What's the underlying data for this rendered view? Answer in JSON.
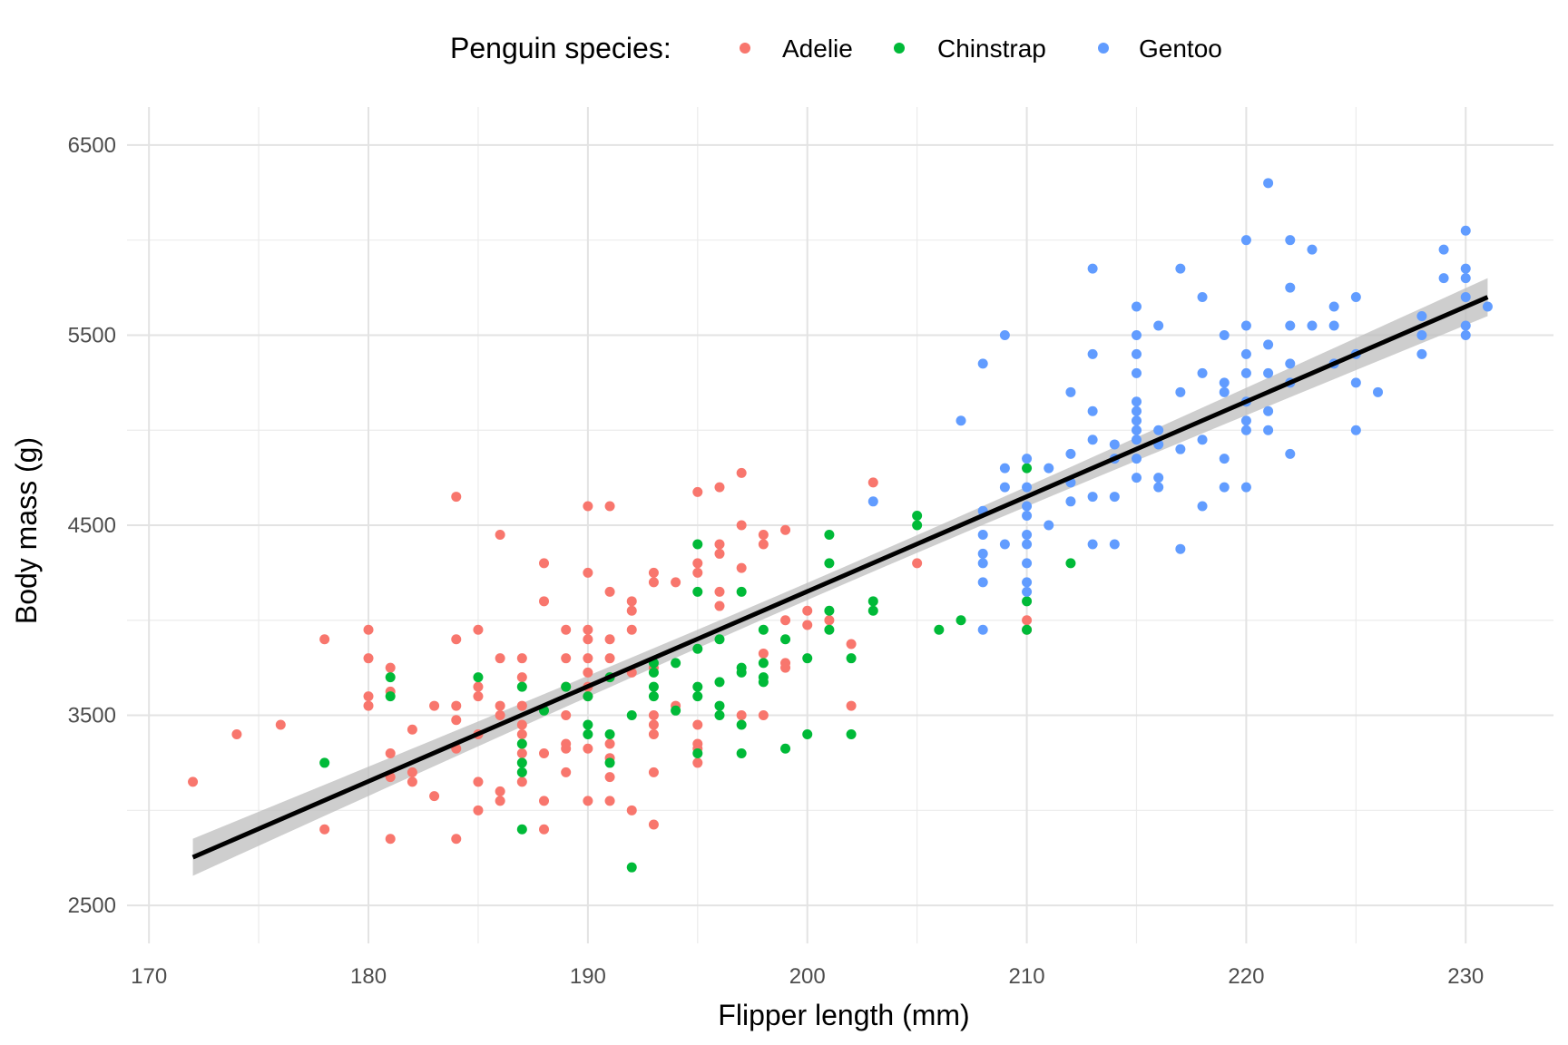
{
  "chart_data": {
    "type": "scatter",
    "xlabel": "Flipper length (mm)",
    "ylabel": "Body mass (g)",
    "xlim": [
      169,
      234
    ],
    "ylim": [
      2300,
      6700
    ],
    "x_ticks": [
      170,
      180,
      190,
      200,
      210,
      220,
      230
    ],
    "y_ticks": [
      2500,
      3500,
      4500,
      5500,
      6500
    ],
    "grid": true,
    "legend": {
      "title": "Penguin species:",
      "position": "top"
    },
    "colors": {
      "Adelie": "#F8766D",
      "Chinstrap": "#00BA38",
      "Gentoo": "#619CFF",
      "fit_line": "#000000",
      "confidence_band": "#BEBEBE"
    },
    "series": [
      {
        "name": "Adelie",
        "points": [
          [
            172,
            3150
          ],
          [
            174,
            3400
          ],
          [
            176,
            3450
          ],
          [
            178,
            3900
          ],
          [
            178,
            2900
          ],
          [
            180,
            3950
          ],
          [
            180,
            3800
          ],
          [
            180,
            3600
          ],
          [
            180,
            3550
          ],
          [
            181,
            3750
          ],
          [
            181,
            3625
          ],
          [
            181,
            3300
          ],
          [
            181,
            3175
          ],
          [
            181,
            2850
          ],
          [
            182,
            3425
          ],
          [
            182,
            3200
          ],
          [
            182,
            3150
          ],
          [
            183,
            3550
          ],
          [
            183,
            3075
          ],
          [
            184,
            4650
          ],
          [
            184,
            3900
          ],
          [
            184,
            3550
          ],
          [
            184,
            3475
          ],
          [
            184,
            3325
          ],
          [
            184,
            2850
          ],
          [
            185,
            3950
          ],
          [
            185,
            3650
          ],
          [
            185,
            3600
          ],
          [
            185,
            3400
          ],
          [
            185,
            3150
          ],
          [
            185,
            3000
          ],
          [
            186,
            4450
          ],
          [
            186,
            3800
          ],
          [
            186,
            3550
          ],
          [
            186,
            3500
          ],
          [
            186,
            3100
          ],
          [
            186,
            3050
          ],
          [
            187,
            3800
          ],
          [
            187,
            3700
          ],
          [
            187,
            3550
          ],
          [
            187,
            3450
          ],
          [
            187,
            3400
          ],
          [
            187,
            3300
          ],
          [
            187,
            3150
          ],
          [
            188,
            4300
          ],
          [
            188,
            4100
          ],
          [
            188,
            3300
          ],
          [
            188,
            3050
          ],
          [
            188,
            2900
          ],
          [
            189,
            3950
          ],
          [
            189,
            3800
          ],
          [
            189,
            3650
          ],
          [
            189,
            3500
          ],
          [
            189,
            3350
          ],
          [
            189,
            3325
          ],
          [
            189,
            3200
          ],
          [
            190,
            4600
          ],
          [
            190,
            4250
          ],
          [
            190,
            3950
          ],
          [
            190,
            3900
          ],
          [
            190,
            3800
          ],
          [
            190,
            3725
          ],
          [
            190,
            3650
          ],
          [
            190,
            3600
          ],
          [
            190,
            3325
          ],
          [
            190,
            3050
          ],
          [
            191,
            4600
          ],
          [
            191,
            4150
          ],
          [
            191,
            3900
          ],
          [
            191,
            3800
          ],
          [
            191,
            3700
          ],
          [
            191,
            3350
          ],
          [
            191,
            3275
          ],
          [
            191,
            3175
          ],
          [
            191,
            3050
          ],
          [
            192,
            4100
          ],
          [
            192,
            4050
          ],
          [
            192,
            3950
          ],
          [
            192,
            3725
          ],
          [
            192,
            3000
          ],
          [
            193,
            4250
          ],
          [
            193,
            4200
          ],
          [
            193,
            3750
          ],
          [
            193,
            3500
          ],
          [
            193,
            3450
          ],
          [
            193,
            3400
          ],
          [
            193,
            3200
          ],
          [
            193,
            2925
          ],
          [
            194,
            4200
          ],
          [
            194,
            3550
          ],
          [
            195,
            4675
          ],
          [
            195,
            4300
          ],
          [
            195,
            4250
          ],
          [
            195,
            3450
          ],
          [
            195,
            3350
          ],
          [
            195,
            3325
          ],
          [
            195,
            3250
          ],
          [
            196,
            4700
          ],
          [
            196,
            4400
          ],
          [
            196,
            4350
          ],
          [
            196,
            4150
          ],
          [
            196,
            4075
          ],
          [
            197,
            4775
          ],
          [
            197,
            4500
          ],
          [
            197,
            4275
          ],
          [
            197,
            3500
          ],
          [
            198,
            4450
          ],
          [
            198,
            4400
          ],
          [
            198,
            3825
          ],
          [
            198,
            3500
          ],
          [
            199,
            4475
          ],
          [
            199,
            4000
          ],
          [
            199,
            3775
          ],
          [
            199,
            3750
          ],
          [
            200,
            4050
          ],
          [
            200,
            3975
          ],
          [
            201,
            4000
          ],
          [
            202,
            3875
          ],
          [
            202,
            3550
          ],
          [
            203,
            4725
          ],
          [
            205,
            4300
          ],
          [
            210,
            4000
          ],
          [
            210,
            3950
          ]
        ]
      },
      {
        "name": "Chinstrap",
        "points": [
          [
            178,
            3250
          ],
          [
            181,
            3700
          ],
          [
            181,
            3600
          ],
          [
            185,
            3700
          ],
          [
            187,
            3650
          ],
          [
            187,
            3350
          ],
          [
            187,
            3250
          ],
          [
            187,
            3200
          ],
          [
            187,
            2900
          ],
          [
            188,
            3525
          ],
          [
            189,
            3650
          ],
          [
            190,
            3600
          ],
          [
            190,
            3450
          ],
          [
            190,
            3400
          ],
          [
            191,
            3700
          ],
          [
            191,
            3400
          ],
          [
            191,
            3250
          ],
          [
            192,
            3500
          ],
          [
            192,
            2700
          ],
          [
            193,
            3775
          ],
          [
            193,
            3725
          ],
          [
            193,
            3650
          ],
          [
            193,
            3600
          ],
          [
            194,
            3775
          ],
          [
            194,
            3525
          ],
          [
            195,
            4400
          ],
          [
            195,
            4150
          ],
          [
            195,
            3850
          ],
          [
            195,
            3650
          ],
          [
            195,
            3600
          ],
          [
            195,
            3300
          ],
          [
            196,
            3900
          ],
          [
            196,
            3675
          ],
          [
            196,
            3550
          ],
          [
            196,
            3500
          ],
          [
            197,
            4150
          ],
          [
            197,
            3750
          ],
          [
            197,
            3725
          ],
          [
            197,
            3450
          ],
          [
            197,
            3300
          ],
          [
            198,
            3950
          ],
          [
            198,
            3775
          ],
          [
            198,
            3700
          ],
          [
            198,
            3675
          ],
          [
            199,
            3900
          ],
          [
            199,
            3325
          ],
          [
            200,
            3800
          ],
          [
            200,
            3400
          ],
          [
            201,
            4450
          ],
          [
            201,
            4300
          ],
          [
            201,
            4050
          ],
          [
            201,
            3950
          ],
          [
            202,
            3800
          ],
          [
            202,
            3400
          ],
          [
            203,
            4100
          ],
          [
            203,
            4050
          ],
          [
            205,
            4550
          ],
          [
            205,
            4500
          ],
          [
            206,
            3950
          ],
          [
            207,
            4000
          ],
          [
            210,
            4800
          ],
          [
            210,
            4100
          ],
          [
            210,
            3950
          ],
          [
            212,
            4300
          ]
        ]
      },
      {
        "name": "Gentoo",
        "points": [
          [
            203,
            4625
          ],
          [
            207,
            5050
          ],
          [
            208,
            5350
          ],
          [
            208,
            4575
          ],
          [
            208,
            4450
          ],
          [
            208,
            4350
          ],
          [
            208,
            4300
          ],
          [
            208,
            4200
          ],
          [
            208,
            3950
          ],
          [
            209,
            5500
          ],
          [
            209,
            4800
          ],
          [
            209,
            4700
          ],
          [
            209,
            4400
          ],
          [
            210,
            4850
          ],
          [
            210,
            4700
          ],
          [
            210,
            4600
          ],
          [
            210,
            4550
          ],
          [
            210,
            4450
          ],
          [
            210,
            4400
          ],
          [
            210,
            4300
          ],
          [
            210,
            4200
          ],
          [
            210,
            4150
          ],
          [
            211,
            4800
          ],
          [
            211,
            4500
          ],
          [
            212,
            5200
          ],
          [
            212,
            4875
          ],
          [
            212,
            4725
          ],
          [
            212,
            4625
          ],
          [
            213,
            5850
          ],
          [
            213,
            5400
          ],
          [
            213,
            5100
          ],
          [
            213,
            4950
          ],
          [
            213,
            4650
          ],
          [
            213,
            4400
          ],
          [
            214,
            4925
          ],
          [
            214,
            4850
          ],
          [
            214,
            4650
          ],
          [
            214,
            4400
          ],
          [
            215,
            5650
          ],
          [
            215,
            5500
          ],
          [
            215,
            5400
          ],
          [
            215,
            5300
          ],
          [
            215,
            5150
          ],
          [
            215,
            5100
          ],
          [
            215,
            5050
          ],
          [
            215,
            5000
          ],
          [
            215,
            4950
          ],
          [
            215,
            4850
          ],
          [
            215,
            4750
          ],
          [
            216,
            5550
          ],
          [
            216,
            5000
          ],
          [
            216,
            4925
          ],
          [
            216,
            4750
          ],
          [
            216,
            4700
          ],
          [
            217,
            5850
          ],
          [
            217,
            5200
          ],
          [
            217,
            4900
          ],
          [
            217,
            4375
          ],
          [
            218,
            5700
          ],
          [
            218,
            5300
          ],
          [
            218,
            4950
          ],
          [
            218,
            4600
          ],
          [
            219,
            5500
          ],
          [
            219,
            5250
          ],
          [
            219,
            5200
          ],
          [
            219,
            4850
          ],
          [
            219,
            4700
          ],
          [
            220,
            6000
          ],
          [
            220,
            5550
          ],
          [
            220,
            5400
          ],
          [
            220,
            5300
          ],
          [
            220,
            5150
          ],
          [
            220,
            5050
          ],
          [
            220,
            5000
          ],
          [
            220,
            4700
          ],
          [
            221,
            6300
          ],
          [
            221,
            5450
          ],
          [
            221,
            5300
          ],
          [
            221,
            5100
          ],
          [
            221,
            5000
          ],
          [
            222,
            6000
          ],
          [
            222,
            5750
          ],
          [
            222,
            5550
          ],
          [
            222,
            5350
          ],
          [
            222,
            5250
          ],
          [
            222,
            4875
          ],
          [
            223,
            5950
          ],
          [
            223,
            5550
          ],
          [
            224,
            5650
          ],
          [
            224,
            5550
          ],
          [
            224,
            5350
          ],
          [
            225,
            5700
          ],
          [
            225,
            5400
          ],
          [
            225,
            5250
          ],
          [
            225,
            5000
          ],
          [
            226,
            5200
          ],
          [
            228,
            5600
          ],
          [
            228,
            5500
          ],
          [
            228,
            5400
          ],
          [
            229,
            5950
          ],
          [
            229,
            5800
          ],
          [
            230,
            6050
          ],
          [
            230,
            5850
          ],
          [
            230,
            5800
          ],
          [
            230,
            5700
          ],
          [
            230,
            5550
          ],
          [
            230,
            5500
          ],
          [
            231,
            5650
          ]
        ]
      }
    ],
    "fit": {
      "type": "linear",
      "start": [
        172,
        2753
      ],
      "end": [
        231,
        5700
      ],
      "confidence_halfwidth_ends": 100,
      "confidence_halfwidth_center": 45,
      "center_x": 201
    }
  }
}
